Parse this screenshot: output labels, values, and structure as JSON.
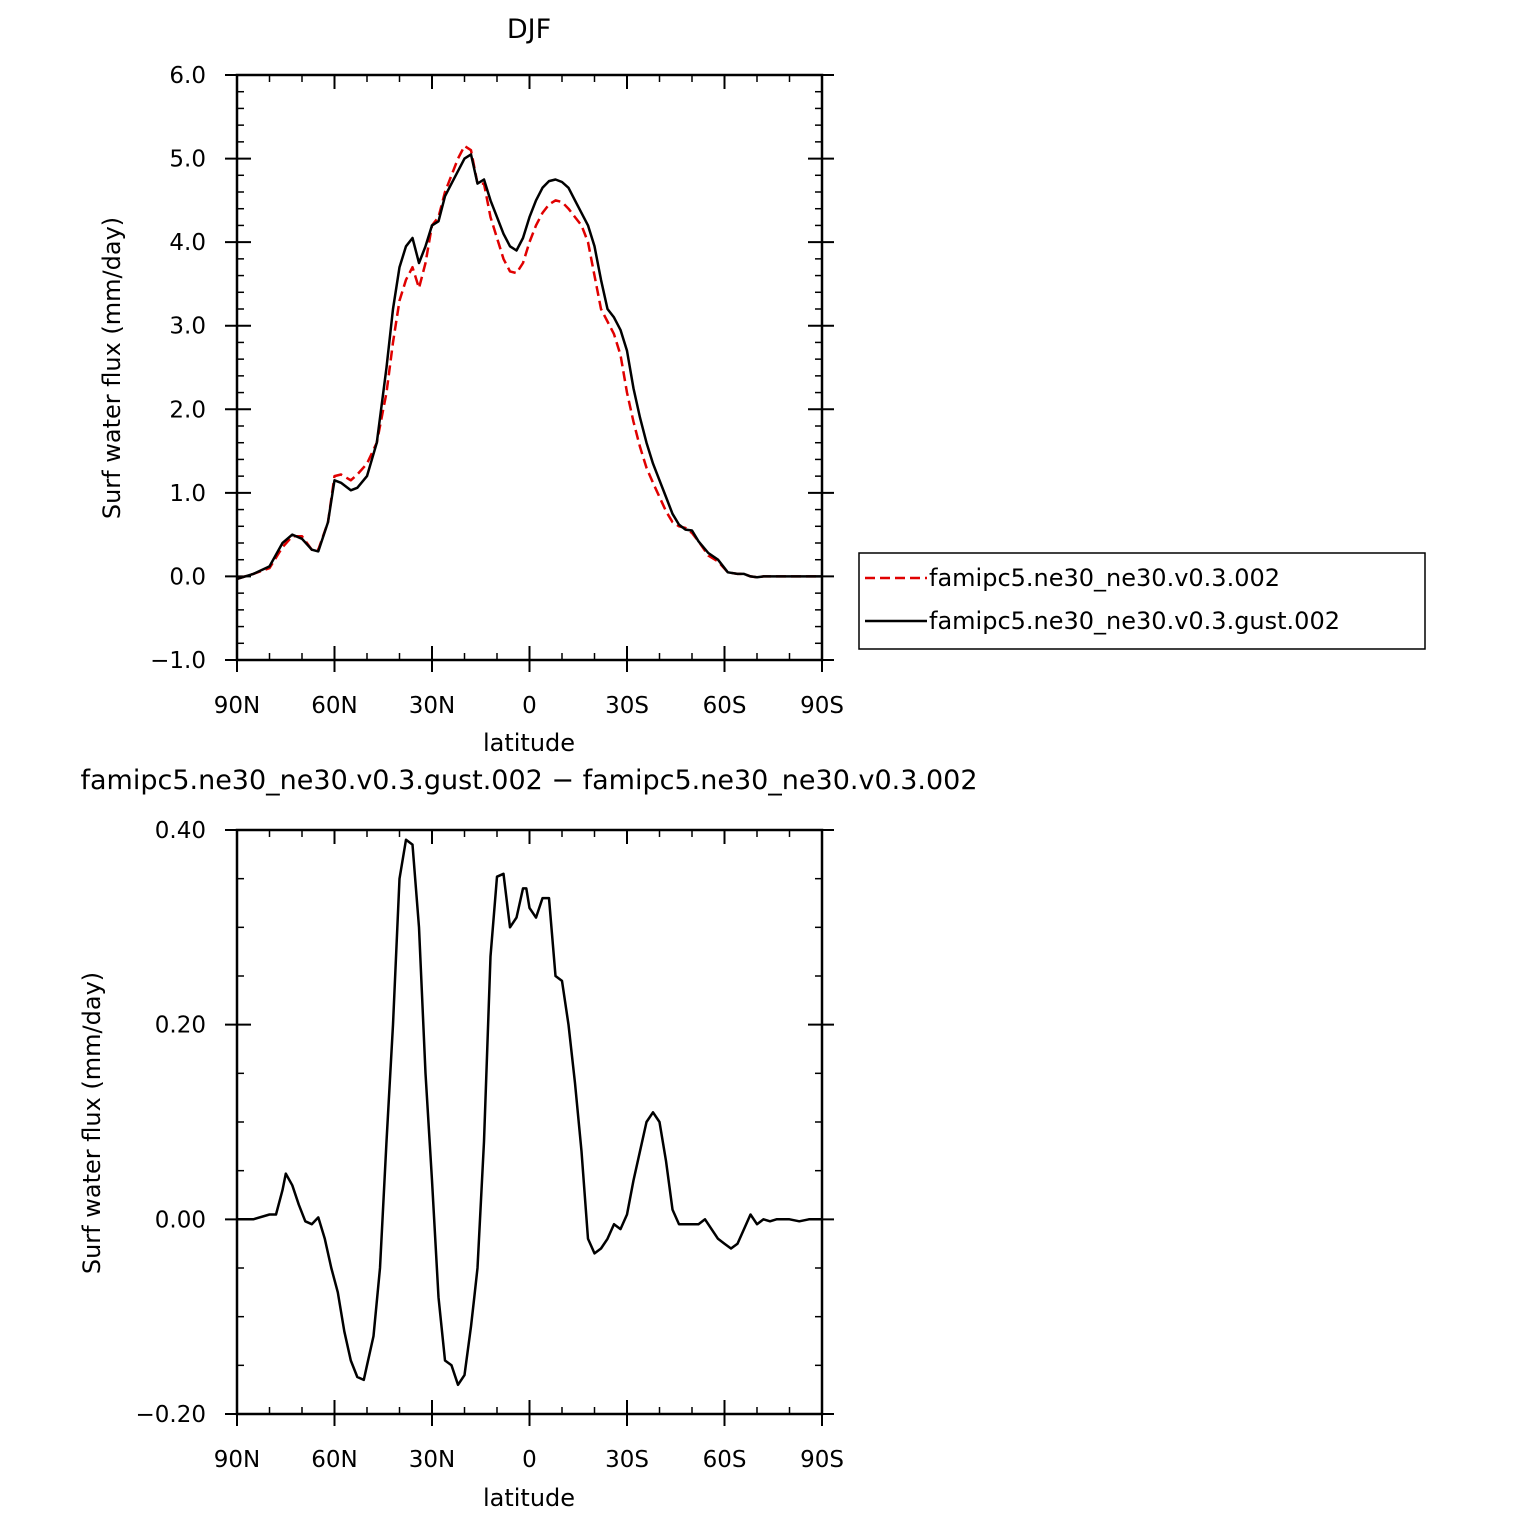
{
  "chart_data": [
    {
      "type": "line",
      "title": "DJF",
      "xlabel": "latitude",
      "ylabel": "Surf water flux (mm/day)",
      "xlim": [
        90,
        -90
      ],
      "ylim": [
        -1.0,
        6.0
      ],
      "x_ticks": [
        90,
        60,
        30,
        0,
        -30,
        -60,
        -90
      ],
      "x_tick_labels": [
        "90N",
        "60N",
        "30N",
        "0",
        "30S",
        "60S",
        "90S"
      ],
      "y_ticks": [
        -1.0,
        0.0,
        1.0,
        2.0,
        3.0,
        4.0,
        5.0,
        6.0
      ],
      "y_tick_labels": [
        "−1.0",
        "0.0",
        "1.0",
        "2.0",
        "3.0",
        "4.0",
        "5.0",
        "6.0"
      ],
      "legend_position": "right",
      "series": [
        {
          "name": "famipc5.ne30_ne30.v0.3.002",
          "color": "#e00000",
          "dash": "dashed",
          "x": [
            90,
            85,
            80,
            76,
            73,
            70,
            67,
            65,
            62,
            60,
            58,
            55,
            53,
            50,
            47,
            44,
            42,
            40,
            38,
            36,
            34,
            32,
            30,
            28,
            26,
            24,
            22,
            20,
            18,
            16,
            14,
            12,
            10,
            8,
            6,
            4,
            2,
            0,
            -2,
            -4,
            -6,
            -8,
            -10,
            -12,
            -14,
            -16,
            -18,
            -20,
            -22,
            -24,
            -26,
            -28,
            -30,
            -32,
            -34,
            -36,
            -38,
            -40,
            -42,
            -44,
            -46,
            -48,
            -50,
            -52,
            -55,
            -58,
            -61,
            -64,
            -66,
            -68,
            -70,
            -72,
            -75,
            -78,
            -80,
            -83,
            -86,
            -90
          ],
          "y": [
            -0.03,
            0.03,
            0.1,
            0.35,
            0.48,
            0.48,
            0.32,
            0.32,
            0.65,
            1.2,
            1.22,
            1.15,
            1.22,
            1.35,
            1.6,
            2.2,
            2.8,
            3.3,
            3.55,
            3.7,
            3.45,
            3.75,
            4.2,
            4.3,
            4.6,
            4.8,
            5.0,
            5.15,
            5.1,
            4.7,
            4.7,
            4.3,
            4.05,
            3.8,
            3.65,
            3.63,
            3.75,
            4.0,
            4.2,
            4.35,
            4.45,
            4.5,
            4.48,
            4.4,
            4.3,
            4.2,
            4.0,
            3.6,
            3.2,
            3.05,
            2.9,
            2.65,
            2.2,
            1.85,
            1.55,
            1.3,
            1.12,
            0.95,
            0.78,
            0.65,
            0.6,
            0.58,
            0.52,
            0.42,
            0.25,
            0.18,
            0.05,
            0.03,
            0.03,
            0.0,
            -0.01,
            0.0,
            0.0,
            0.0,
            0.0,
            0.0,
            0.0,
            0.0
          ]
        },
        {
          "name": "famipc5.ne30_ne30.v0.3.gust.002",
          "color": "#000000",
          "dash": "solid",
          "x": [
            90,
            85,
            80,
            76,
            73,
            70,
            67,
            65,
            62,
            60,
            58,
            55,
            53,
            50,
            47,
            44,
            42,
            40,
            38,
            36,
            34,
            32,
            30,
            28,
            26,
            24,
            22,
            20,
            18,
            16,
            14,
            12,
            10,
            8,
            6,
            4,
            2,
            0,
            -2,
            -4,
            -6,
            -8,
            -10,
            -12,
            -14,
            -16,
            -18,
            -20,
            -22,
            -24,
            -26,
            -28,
            -30,
            -32,
            -34,
            -36,
            -38,
            -40,
            -42,
            -44,
            -46,
            -48,
            -50,
            -52,
            -55,
            -58,
            -61,
            -64,
            -66,
            -68,
            -70,
            -72,
            -75,
            -78,
            -80,
            -83,
            -86,
            -90
          ],
          "y": [
            -0.03,
            0.03,
            0.12,
            0.4,
            0.5,
            0.45,
            0.32,
            0.3,
            0.65,
            1.15,
            1.12,
            1.03,
            1.06,
            1.2,
            1.6,
            2.5,
            3.2,
            3.7,
            3.95,
            4.05,
            3.75,
            3.95,
            4.2,
            4.25,
            4.55,
            4.7,
            4.85,
            5.0,
            5.05,
            4.7,
            4.75,
            4.5,
            4.3,
            4.1,
            3.95,
            3.9,
            4.05,
            4.3,
            4.5,
            4.65,
            4.73,
            4.75,
            4.72,
            4.65,
            4.5,
            4.35,
            4.2,
            3.95,
            3.55,
            3.2,
            3.1,
            2.95,
            2.7,
            2.25,
            1.9,
            1.6,
            1.35,
            1.15,
            0.95,
            0.75,
            0.62,
            0.56,
            0.55,
            0.42,
            0.28,
            0.2,
            0.05,
            0.03,
            0.03,
            0.0,
            -0.01,
            0.0,
            0.0,
            0.0,
            0.0,
            0.0,
            0.0,
            0.0
          ]
        }
      ]
    },
    {
      "type": "line",
      "title": "famipc5.ne30_ne30.v0.3.gust.002 − famipc5.ne30_ne30.v0.3.002",
      "xlabel": "latitude",
      "ylabel": "Surf water flux (mm/day)",
      "xlim": [
        90,
        -90
      ],
      "ylim": [
        -0.2,
        0.4
      ],
      "x_ticks": [
        90,
        60,
        30,
        0,
        -30,
        -60,
        -90
      ],
      "x_tick_labels": [
        "90N",
        "60N",
        "30N",
        "0",
        "30S",
        "60S",
        "90S"
      ],
      "y_ticks": [
        -0.2,
        0.0,
        0.2,
        0.4
      ],
      "y_tick_labels": [
        "−0.20",
        "0.00",
        "0.20",
        "0.40"
      ],
      "series": [
        {
          "color": "#000000",
          "dash": "solid",
          "x": [
            90,
            85,
            80,
            78,
            76,
            75,
            73,
            71,
            69,
            67,
            65,
            63,
            61,
            59,
            57,
            55,
            53,
            51,
            50,
            48,
            46,
            44,
            42,
            40,
            38,
            36,
            34,
            32,
            30,
            28,
            26,
            24,
            22,
            20,
            18,
            17,
            16,
            14,
            12,
            10,
            8,
            6,
            4,
            2,
            1,
            0,
            -2,
            -4,
            -6,
            -8,
            -10,
            -12,
            -14,
            -16,
            -18,
            -20,
            -22,
            -24,
            -26,
            -28,
            -30,
            -32,
            -34,
            -36,
            -38,
            -40,
            -42,
            -44,
            -46,
            -48,
            -50,
            -52,
            -54,
            -56,
            -58,
            -60,
            -62,
            -64,
            -66,
            -68,
            -70,
            -72,
            -74,
            -76,
            -78,
            -80,
            -83,
            -86,
            -90
          ],
          "y": [
            0.0,
            0.0,
            0.005,
            0.005,
            0.03,
            0.047,
            0.035,
            0.015,
            -0.002,
            -0.005,
            0.002,
            -0.02,
            -0.05,
            -0.075,
            -0.115,
            -0.145,
            -0.162,
            -0.165,
            -0.15,
            -0.12,
            -0.05,
            0.08,
            0.2,
            0.35,
            0.39,
            0.385,
            0.3,
            0.15,
            0.04,
            -0.08,
            -0.145,
            -0.15,
            -0.17,
            -0.16,
            -0.11,
            -0.08,
            -0.05,
            0.08,
            0.27,
            0.352,
            0.355,
            0.3,
            0.31,
            0.34,
            0.34,
            0.32,
            0.31,
            0.33,
            0.33,
            0.25,
            0.245,
            0.2,
            0.14,
            0.07,
            -0.02,
            -0.035,
            -0.03,
            -0.02,
            -0.005,
            -0.01,
            0.005,
            0.04,
            0.07,
            0.1,
            0.11,
            0.1,
            0.06,
            0.01,
            -0.005,
            -0.005,
            -0.005,
            -0.005,
            0.0,
            -0.01,
            -0.02,
            -0.025,
            -0.03,
            -0.025,
            -0.01,
            0.005,
            -0.005,
            0.0,
            -0.002,
            0.0,
            0.0,
            0.0,
            -0.002,
            0.0,
            0.0
          ]
        }
      ]
    }
  ]
}
